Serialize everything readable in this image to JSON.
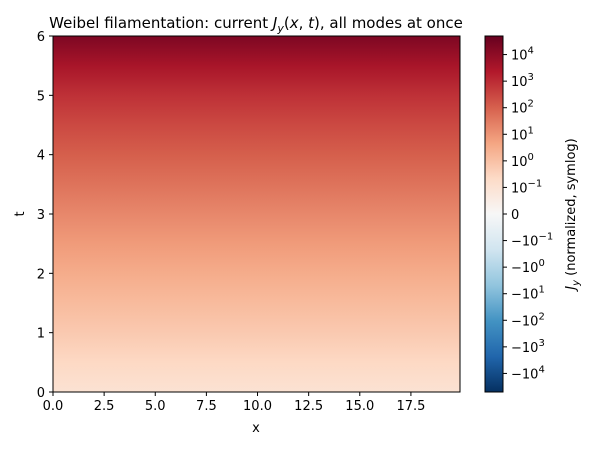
{
  "chart_data": {
    "type": "heatmap",
    "title": "Weibel filamentation: current J_y(x, t), all modes at once",
    "xlabel": "x",
    "ylabel": "t",
    "xlim": [
      0,
      19.9
    ],
    "ylim": [
      0,
      6
    ],
    "x_ticks": [
      0,
      2.5,
      5,
      7.5,
      10,
      12.5,
      15,
      17.5
    ],
    "x_tick_labels": [
      "0.0",
      "2.5",
      "5.0",
      "7.5",
      "10.0",
      "12.5",
      "15.0",
      "17.5"
    ],
    "y_ticks": [
      0,
      1,
      2,
      3,
      4,
      5,
      6
    ],
    "y_tick_labels": [
      "0",
      "1",
      "2",
      "3",
      "4",
      "5",
      "6"
    ],
    "grid": false,
    "colormap": "RdBu_r",
    "color_scale": "symlog",
    "clim": [
      -50000,
      50000
    ],
    "colorbar": {
      "label": "J_y (normalized, symlog)",
      "position": "right",
      "ticks": [
        {
          "value": 10000,
          "label": "10^4"
        },
        {
          "value": 1000,
          "label": "10^3"
        },
        {
          "value": 100,
          "label": "10^2"
        },
        {
          "value": 10,
          "label": "10^1"
        },
        {
          "value": 1,
          "label": "10^0"
        },
        {
          "value": 0.1,
          "label": "10^-1"
        },
        {
          "value": 0,
          "label": "0"
        },
        {
          "value": -0.1,
          "label": "-10^-1"
        },
        {
          "value": -1,
          "label": "-10^0"
        },
        {
          "value": -10,
          "label": "-10^1"
        },
        {
          "value": -100,
          "label": "-10^2"
        },
        {
          "value": -1000,
          "label": "-10^3"
        },
        {
          "value": -10000,
          "label": "-10^4"
        }
      ]
    },
    "field_profile": {
      "description_of_values": "J_y is uniform along x; magnitude grows exponentially in t",
      "t": [
        0,
        0.5,
        1,
        1.5,
        2,
        2.5,
        3,
        3.5,
        4,
        4.5,
        5,
        5.5,
        6
      ],
      "Jy": [
        0.1,
        0.25,
        0.6,
        1.4,
        3.2,
        7.5,
        18,
        45,
        110,
        280,
        800,
        3500,
        20000
      ]
    }
  }
}
